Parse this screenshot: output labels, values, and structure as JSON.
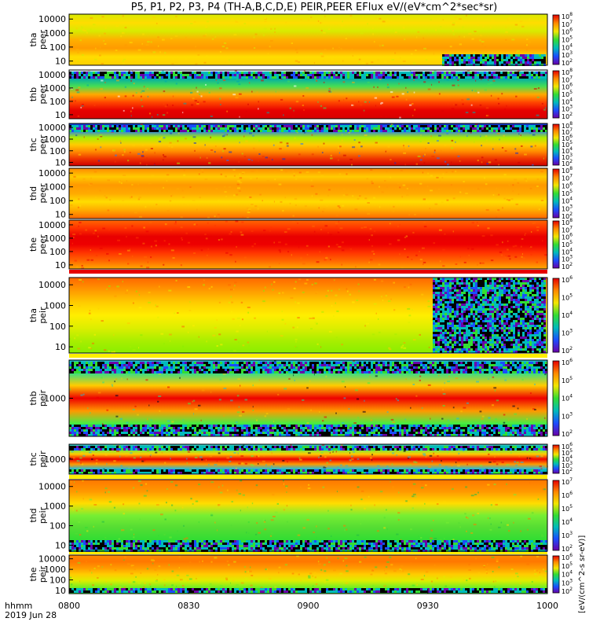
{
  "chart_data": {
    "type": "heatmap",
    "title": "P5, P1, P2, P3, P4 (TH-A,B,C,D,E) PEIR,PEER EFlux eV/(eV*cm^2*sec*sr)",
    "x": {
      "ticks": [
        "0800",
        "0830",
        "0900",
        "0930",
        "1000"
      ],
      "label_line1": "hhmm",
      "label_line2": "2019 Jun 28"
    },
    "colorbar_label": "[eV/(cm^2-s sr-eV)]",
    "colorbar_colors": [
      "#e60000",
      "#ff8a00",
      "#f2e600",
      "#33dd33",
      "#00bbbb",
      "#1a4dff",
      "#6a00a8"
    ],
    "panels": [
      {
        "probe": "tha",
        "species": "peer",
        "yticks": [
          "10",
          "100",
          "1000",
          "10000"
        ],
        "cbticks": [
          "10^2",
          "10^3",
          "10^4",
          "10^5",
          "10^6",
          "10^7",
          "10^8"
        ],
        "profile": [
          "#ffd000",
          "#ffdd00",
          "#ff9a00",
          "#ffb000",
          "#d8ea00",
          "#ffdd00",
          "#d8ea00"
        ],
        "noise_bottom_after": 0.78
      },
      {
        "probe": "thb",
        "species": "peer",
        "yticks": [
          "10",
          "100",
          "1000",
          "10000"
        ],
        "cbticks": [
          "10^2",
          "10^3",
          "10^4",
          "10^5",
          "10^6",
          "10^7",
          "10^8"
        ],
        "profile": [
          "#d80000",
          "#e60000",
          "#ff4400",
          "#ffaa00",
          "#44dd55",
          "#00aaaa",
          "#ffffff"
        ],
        "noisy_top": true
      },
      {
        "probe": "thc",
        "species": "peer",
        "yticks": [
          "10",
          "100",
          "1000",
          "10000"
        ],
        "cbticks": [
          "10^2",
          "10^3",
          "10^4",
          "10^5",
          "10^6",
          "10^7",
          "10^8"
        ],
        "profile": [
          "#cc0000",
          "#ee3300",
          "#ff8800",
          "#ffcc00",
          "#aaee00",
          "#2277ff",
          "#1133cc"
        ],
        "noisy_top": true
      },
      {
        "probe": "thd",
        "species": "peer",
        "yticks": [
          "10",
          "100",
          "1000",
          "10000"
        ],
        "cbticks": [
          "10^2",
          "10^3",
          "10^4",
          "10^5",
          "10^6",
          "10^7",
          "10^8"
        ],
        "profile": [
          "#ff6600",
          "#ffaa00",
          "#ffdd00",
          "#ffaa00",
          "#ff9900",
          "#ffcc00",
          "#ff8800"
        ]
      },
      {
        "probe": "the",
        "species": "peer",
        "yticks": [
          "10",
          "100",
          "1000",
          "10000"
        ],
        "cbticks": [
          "10^2",
          "10^3",
          "10^4",
          "10^5",
          "10^6",
          "10^7",
          "10^8"
        ],
        "profile": [
          "#ffaa00",
          "#ff6600",
          "#ff3300",
          "#ee0000",
          "#e80000",
          "#ff3300",
          "#ff6600"
        ]
      },
      {
        "probe": "tha",
        "species": "peir",
        "yticks": [
          "10",
          "100",
          "1000",
          "10000"
        ],
        "cbticks": [
          "10^2",
          "10^3",
          "10^4",
          "10^5",
          "10^6"
        ],
        "profile": [
          "#88ee00",
          "#aaee00",
          "#ddee00",
          "#ffee00",
          "#ffcc00",
          "#ff9900",
          "#ff6600"
        ],
        "noise_after": 0.76
      },
      {
        "probe": "thb",
        "species": "peir",
        "yticks": [
          "1000"
        ],
        "cbticks": [
          "10^2",
          "10^3",
          "10^4",
          "10^5",
          "10^6"
        ],
        "profile": [
          "#000022",
          "#44ee44",
          "#ff9900",
          "#ee0000",
          "#ffcc00",
          "#33dd88",
          "#22bbdd"
        ],
        "noisy_top": true,
        "noisy_bottom": true
      },
      {
        "probe": "thc",
        "species": "peir",
        "yticks": [
          "1000"
        ],
        "cbticks": [
          "10^2",
          "10^3",
          "10^4",
          "10^5",
          "10^6"
        ],
        "profile": [
          "#000022",
          "#22bbdd",
          "#ff9900",
          "#ee0000",
          "#ffcc00",
          "#66ee44",
          "#22bbdd"
        ],
        "noisy_top": true,
        "noisy_bottom": true
      },
      {
        "probe": "thd",
        "species": "peir",
        "yticks": [
          "10",
          "100",
          "1000",
          "10000"
        ],
        "cbticks": [
          "10^2",
          "10^3",
          "10^4",
          "10^5",
          "10^6",
          "10^7"
        ],
        "profile": [
          "#22bb44",
          "#33dd33",
          "#55dd33",
          "#77ee33",
          "#ffdd00",
          "#ff9900",
          "#ff7700"
        ],
        "noisy_bottom": true
      },
      {
        "probe": "the",
        "species": "peir",
        "yticks": [
          "10",
          "100",
          "1000",
          "10000"
        ],
        "cbticks": [
          "10^2",
          "10^3",
          "10^4",
          "10^5",
          "10^6"
        ],
        "profile": [
          "#33dd33",
          "#77ee22",
          "#ddee00",
          "#ffcc00",
          "#ff9900",
          "#ff7700",
          "#ff8800"
        ],
        "noisy_bottom": true
      }
    ]
  }
}
